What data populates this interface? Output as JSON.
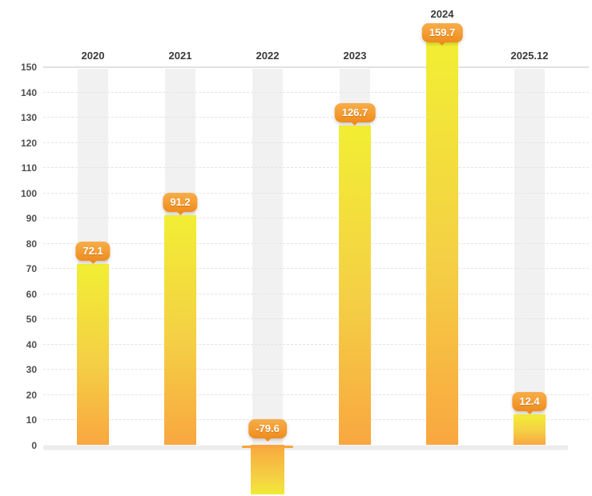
{
  "chart_data": {
    "type": "bar",
    "title": "",
    "xlabel": "",
    "ylabel": "",
    "categories": [
      "2020",
      "2021",
      "2022",
      "2023",
      "2024",
      "2025.12"
    ],
    "values": [
      72.1,
      91.2,
      -79.6,
      126.7,
      159.7,
      12.4
    ],
    "value_labels": [
      "72.1",
      "91.2",
      "-79.6",
      "126.7",
      "159.7",
      "12.4"
    ],
    "y_ticks": [
      0,
      10,
      20,
      30,
      40,
      50,
      60,
      70,
      80,
      90,
      100,
      110,
      120,
      130,
      140,
      150
    ],
    "ylim": [
      0,
      150
    ],
    "grid": "horizontal-dashed",
    "legend_position": "none",
    "notes": "Single orange-yellow gradient series; each bar has a light gray full-height background band; value shown in orange callout badge above bar end; negative 2022 bar extends below the zero base line and is clipped by the chart edge."
  },
  "colors": {
    "background": "#ffffff",
    "bar_gradient_value_end": "#f2ee33",
    "bar_gradient_zero_end": "#f9a73f",
    "badge_top": "#f8ae49",
    "badge_bottom": "#ef8c1e",
    "badge_text": "#ffffff",
    "column_band": "#f1f1f1",
    "axis_base": "#ececec",
    "gridline": "#e4e4e4",
    "top_line": "#e1e1e1",
    "x_label_text": "#3a3a3a",
    "y_label_text": "#4f4f4f"
  }
}
